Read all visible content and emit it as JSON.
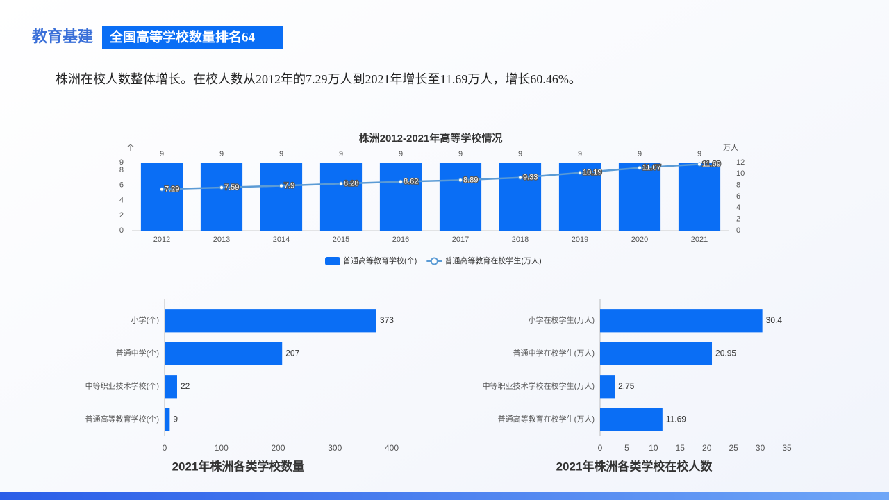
{
  "header": {
    "section": "教育基建",
    "title": "全国高等学校数量排名64",
    "description": "株洲在校人数整体增长。在校人数从2012年的7.29万人到2021年增长至11.69万人，增长60.46%。"
  },
  "chart_data": [
    {
      "type": "combo",
      "title": "株洲2012-2021年高等学校情况",
      "categories": [
        "2012",
        "2013",
        "2014",
        "2015",
        "2016",
        "2017",
        "2018",
        "2019",
        "2020",
        "2021"
      ],
      "series": [
        {
          "name": "普通高等教育学校(个)",
          "type": "bar",
          "color": "#0a6ef5",
          "values": [
            9,
            9,
            9,
            9,
            9,
            9,
            9,
            9,
            9,
            9
          ]
        },
        {
          "name": "普通高等教育在校学生(万人)",
          "type": "line",
          "axis": "y2",
          "color": "#5b9bd5",
          "values": [
            7.29,
            7.59,
            7.9,
            8.28,
            8.62,
            8.89,
            9.33,
            10.19,
            11.07,
            11.69
          ]
        }
      ],
      "y_unit": "个",
      "y2_unit": "万人",
      "ylim": [
        0,
        9
      ],
      "yticks": [
        0,
        2,
        4,
        6,
        8,
        9
      ],
      "y2lim": [
        0,
        12
      ],
      "y2ticks": [
        0,
        2,
        4,
        6,
        8,
        10,
        12
      ]
    },
    {
      "type": "barh",
      "title": "2021年株洲各类学校数量",
      "color": "#0a6ef5",
      "categories": [
        "小学(个)",
        "普通中学(个)",
        "中等职业技术学校(个)",
        "普通高等教育学校(个)"
      ],
      "values": [
        373,
        207,
        22,
        9
      ],
      "xlim": [
        0,
        400
      ],
      "xticks": [
        0,
        100,
        200,
        300,
        400
      ]
    },
    {
      "type": "barh",
      "title": "2021年株洲各类学校在校人数",
      "color": "#0a6ef5",
      "categories": [
        "小学在校学生(万人)",
        "普通中学在校学生(万人)",
        "中等职业技术学校在校学生(万人)",
        "普通高等教育在校学生(万人)"
      ],
      "values": [
        30.4,
        20.95,
        2.75,
        11.69
      ],
      "xlim": [
        0,
        35
      ],
      "xticks": [
        0,
        5,
        10,
        15,
        20,
        25,
        30,
        35
      ]
    }
  ]
}
